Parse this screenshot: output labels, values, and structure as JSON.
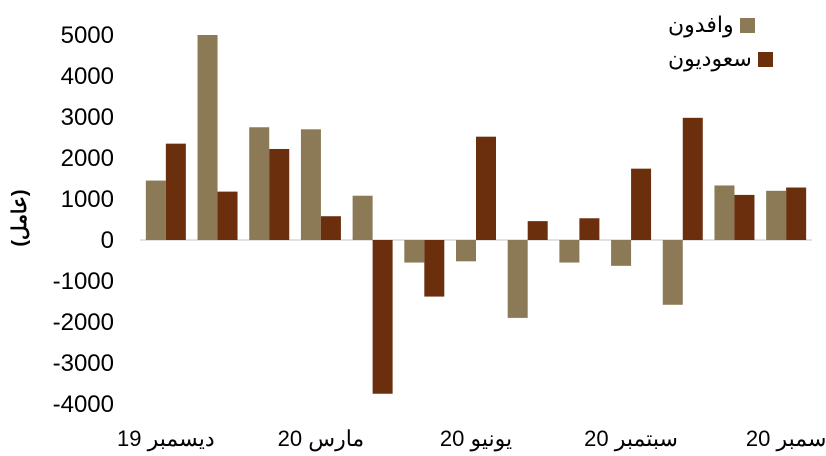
{
  "chart_data": {
    "type": "bar",
    "ylabel": "(عامل)",
    "ylim": [
      -4000,
      5000
    ],
    "yticks": [
      5000,
      4000,
      3000,
      2000,
      1000,
      0,
      -1000,
      -2000,
      -3000,
      -4000
    ],
    "x_tick_labels": [
      "ديسمبر 19",
      "مارس 20",
      "يونيو 20",
      "سبتمبر 20",
      "سمبر 20"
    ],
    "categories": [
      "",
      "",
      "",
      "",
      "",
      "",
      "",
      "",
      "",
      "",
      "",
      "",
      ""
    ],
    "series": [
      {
        "name": "وافدون",
        "color": "#8c7a57",
        "values": [
          1450,
          5000,
          2750,
          2700,
          1080,
          -550,
          -520,
          -1900,
          -550,
          -630,
          -1580,
          1330,
          1200
        ]
      },
      {
        "name": "سعوديون",
        "color": "#6b2f0e",
        "values": [
          2350,
          1180,
          2220,
          580,
          -3750,
          -1380,
          2520,
          460,
          530,
          1740,
          2980,
          1100,
          1280
        ]
      }
    ],
    "grid": false,
    "legend_position": "top-right"
  }
}
